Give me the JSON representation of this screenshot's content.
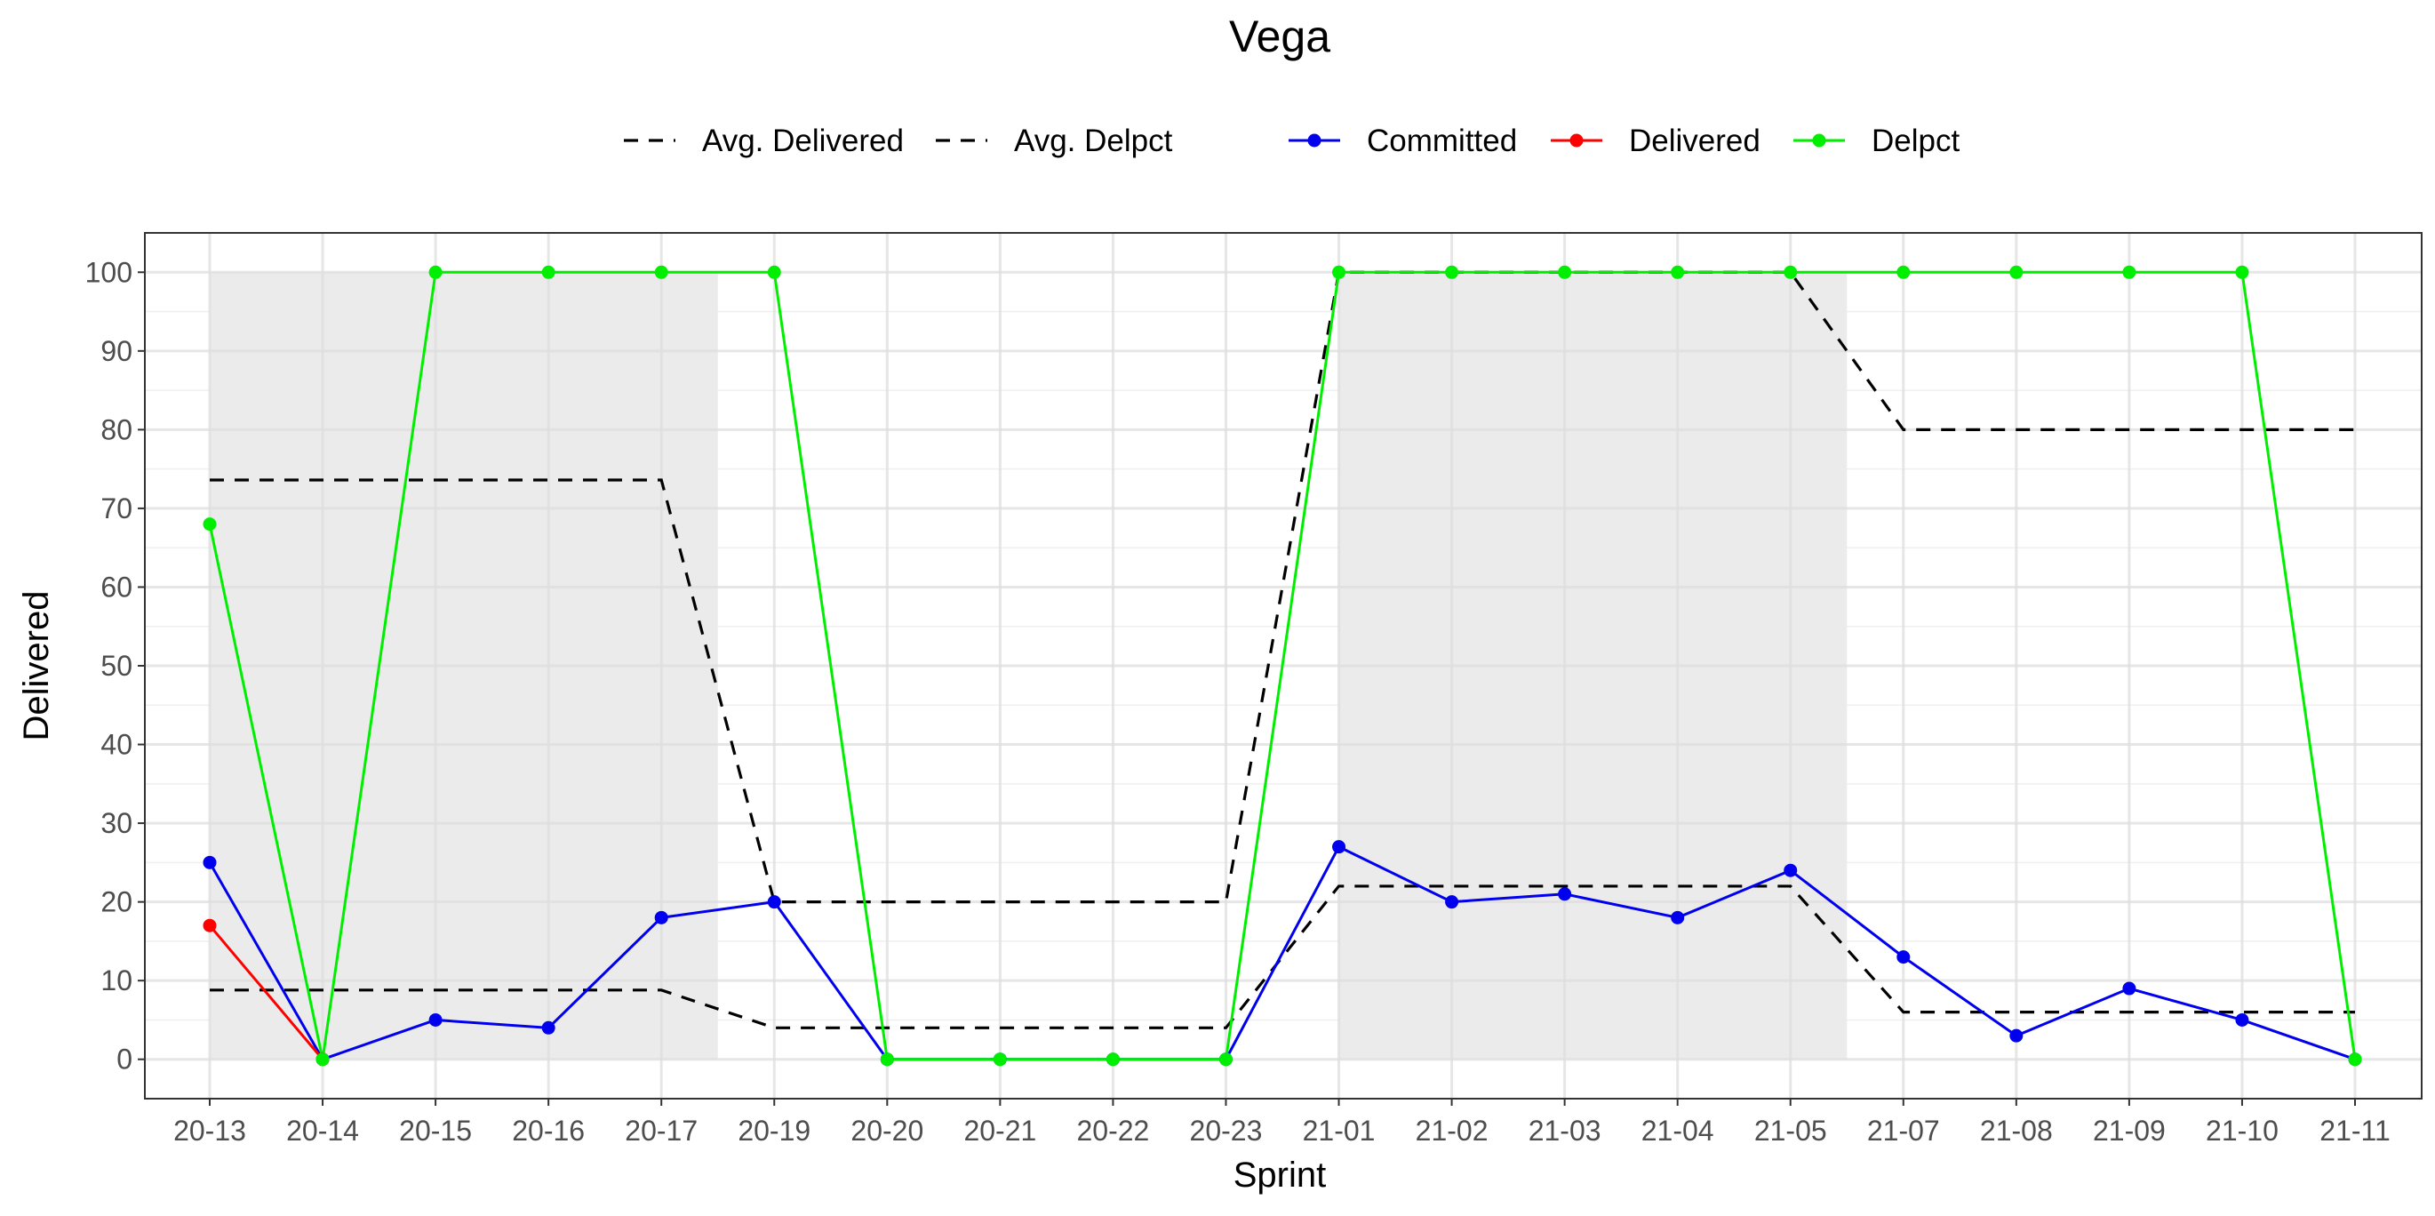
{
  "chart_data": {
    "type": "line",
    "title": "Vega",
    "xlabel": "Sprint",
    "ylabel": "Delivered",
    "ylim": [
      -5,
      105
    ],
    "yticks": [
      0,
      10,
      20,
      30,
      40,
      50,
      60,
      70,
      80,
      90,
      100
    ],
    "grid": true,
    "legend_position": "top",
    "categories": [
      "20-13",
      "20-14",
      "20-15",
      "20-16",
      "20-17",
      "20-19",
      "20-20",
      "20-21",
      "20-22",
      "20-23",
      "21-01",
      "21-02",
      "21-03",
      "21-04",
      "21-05",
      "21-07",
      "21-08",
      "21-09",
      "21-10",
      "21-11"
    ],
    "shaded_ranges": [
      {
        "from": "20-13",
        "to": "20-17"
      },
      {
        "from": "21-01",
        "to": "21-05"
      }
    ],
    "series": [
      {
        "name": "Avg. Delivered",
        "style": "dashed",
        "color": "#000000",
        "values": [
          8.8,
          8.8,
          8.8,
          8.8,
          8.8,
          4,
          4,
          4,
          4,
          4,
          22,
          22,
          22,
          22,
          22,
          6,
          6,
          6,
          6,
          6
        ]
      },
      {
        "name": "Avg. Delpct",
        "style": "dashed",
        "color": "#000000",
        "values": [
          73.6,
          73.6,
          73.6,
          73.6,
          73.6,
          20,
          20,
          20,
          20,
          20,
          100,
          100,
          100,
          100,
          100,
          80,
          80,
          80,
          80,
          80
        ]
      },
      {
        "name": "Committed",
        "style": "solid",
        "color": "#0000ee",
        "values": [
          25,
          0,
          5,
          4,
          18,
          20,
          0,
          0,
          0,
          0,
          27,
          20,
          21,
          18,
          24,
          13,
          3,
          9,
          5,
          0
        ]
      },
      {
        "name": "Delivered",
        "style": "solid",
        "color": "#ff0000",
        "values": [
          17,
          0,
          null,
          null,
          null,
          null,
          null,
          null,
          null,
          null,
          null,
          null,
          null,
          null,
          null,
          null,
          null,
          null,
          null,
          null
        ]
      },
      {
        "name": "Delpct",
        "style": "solid",
        "color": "#00ee00",
        "values": [
          68,
          0,
          100,
          100,
          100,
          100,
          0,
          0,
          0,
          0,
          100,
          100,
          100,
          100,
          100,
          100,
          100,
          100,
          100,
          0
        ]
      }
    ]
  }
}
